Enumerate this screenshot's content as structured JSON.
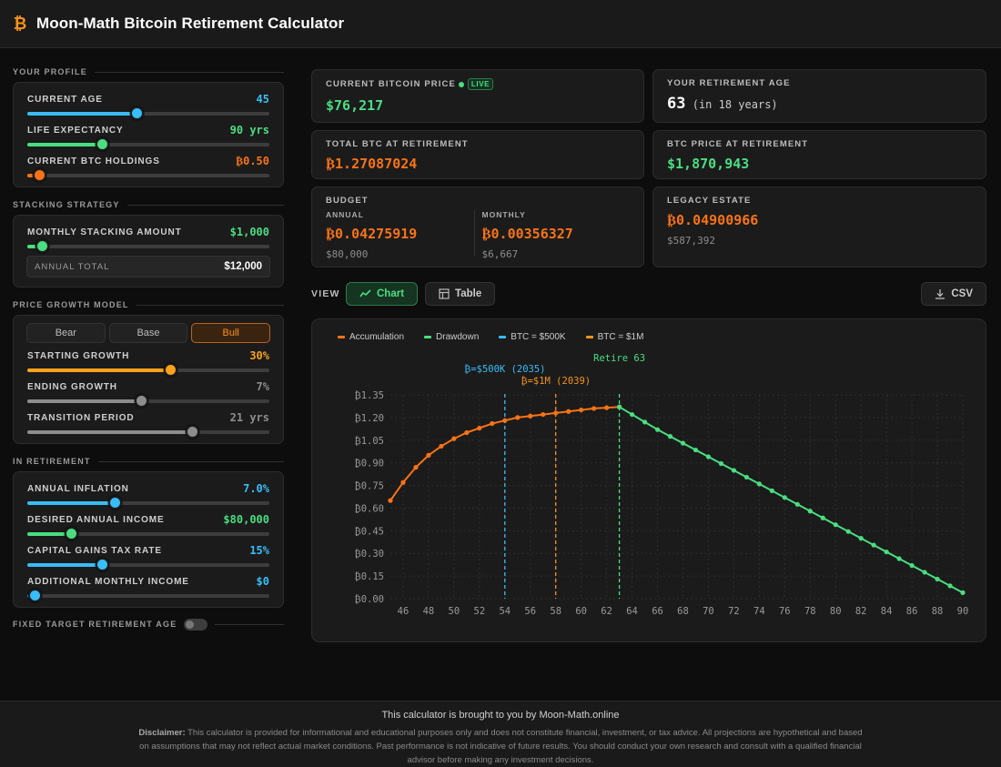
{
  "app": {
    "logo_glyph": "₿",
    "title": "Moon-Math Bitcoin Retirement Calculator"
  },
  "colors": {
    "accent_btc": "#f7931a",
    "green": "#4ade80",
    "orange": "#f97316",
    "blue": "#38bdf8",
    "bg": "#0d0d0d",
    "panel": "#1b1b1b"
  },
  "profile": {
    "section_label": "Your Profile",
    "current_age": {
      "label": "Current Age",
      "value": "45",
      "level": 0.45
    },
    "life_expectancy": {
      "label": "Life Expectancy",
      "value": "90 yrs",
      "level": 0.31
    },
    "btc_holdings": {
      "label": "Current BTC Holdings",
      "value": "₿0.50",
      "level": 0.05
    }
  },
  "stacking": {
    "section_label": "Stacking Strategy",
    "monthly": {
      "label": "Monthly Stacking Amount",
      "value": "$1,000",
      "level": 0.06
    },
    "annual_total_label": "Annual Total",
    "annual_total_value": "$12,000"
  },
  "growth": {
    "section_label": "Price Growth Model",
    "models": [
      "Bear",
      "Base",
      "Bull"
    ],
    "selected_model": "Bull",
    "starting": {
      "label": "Starting Growth",
      "value": "30%",
      "level": 0.59
    },
    "ending": {
      "label": "Ending Growth",
      "value": "7%",
      "level": 0.47
    },
    "transition": {
      "label": "Transition Period",
      "value": "21 yrs",
      "level": 0.68
    }
  },
  "retirement": {
    "section_label": "In Retirement",
    "inflation": {
      "label": "Annual Inflation",
      "value": "7.0%",
      "level": 0.36
    },
    "income": {
      "label": "Desired Annual Income",
      "value": "$80,000",
      "level": 0.18
    },
    "tax": {
      "label": "Capital Gains Tax Rate",
      "value": "15%",
      "level": 0.31
    },
    "additional": {
      "label": "Additional Monthly Income",
      "value": "$0",
      "level": 0.03
    }
  },
  "fixed_target": {
    "label": "Fixed Target Retirement Age",
    "enabled": false
  },
  "cards": {
    "btc_price": {
      "label": "Current Bitcoin Price",
      "value": "$76,217",
      "live": "LIVE"
    },
    "retirement_age": {
      "label": "Your Retirement Age",
      "value": "63",
      "sub": "(in 18 years)"
    },
    "total_btc": {
      "label": "Total BTC at Retirement",
      "value": "₿1.27087024"
    },
    "btc_price_ret": {
      "label": "BTC Price at Retirement",
      "value": "$1,870,943"
    },
    "budget": {
      "label": "Budget",
      "annual_label": "Annual",
      "annual_btc": "₿0.04275919",
      "annual_usd": "$80,000",
      "monthly_label": "Monthly",
      "monthly_btc": "₿0.00356327",
      "monthly_usd": "$6,667"
    },
    "legacy": {
      "label": "Legacy Estate",
      "btc": "₿0.04900966",
      "usd": "$587,392"
    }
  },
  "view": {
    "label": "VIEW",
    "chart_btn": "Chart",
    "table_btn": "Table",
    "csv_btn": "CSV",
    "active": "Chart"
  },
  "chart_data": {
    "type": "line",
    "legend_position": "top-left",
    "series": [
      {
        "name": "Accumulation",
        "color": "#f97316",
        "x": [
          45,
          46,
          47,
          48,
          49,
          50,
          51,
          52,
          53,
          54,
          55,
          56,
          57,
          58,
          59,
          60,
          61,
          62,
          63
        ],
        "y": [
          0.65,
          0.77,
          0.87,
          0.95,
          1.01,
          1.06,
          1.1,
          1.13,
          1.16,
          1.18,
          1.2,
          1.21,
          1.22,
          1.23,
          1.24,
          1.25,
          1.26,
          1.265,
          1.27
        ]
      },
      {
        "name": "Drawdown",
        "color": "#4ade80",
        "x": [
          63,
          64,
          65,
          66,
          67,
          68,
          69,
          70,
          71,
          72,
          73,
          74,
          75,
          76,
          77,
          78,
          79,
          80,
          81,
          82,
          83,
          84,
          85,
          86,
          87,
          88,
          89,
          90
        ],
        "y": [
          1.27,
          1.22,
          1.17,
          1.12,
          1.075,
          1.03,
          0.985,
          0.94,
          0.895,
          0.85,
          0.805,
          0.76,
          0.715,
          0.67,
          0.625,
          0.58,
          0.535,
          0.49,
          0.445,
          0.4,
          0.355,
          0.31,
          0.265,
          0.22,
          0.175,
          0.13,
          0.085,
          0.04
        ]
      }
    ],
    "markers": [
      {
        "name": "BTC = $500K",
        "x": 54,
        "color": "#38bdf8",
        "label": "₿=$500K (2035)"
      },
      {
        "name": "BTC = $1M",
        "x": 58,
        "color": "#f7931a",
        "label": "₿=$1M (2039)"
      },
      {
        "name": "Retire",
        "x": 63,
        "color": "#4ade80",
        "label": "Retire 63"
      }
    ],
    "x_ticks": [
      46,
      48,
      50,
      52,
      54,
      56,
      58,
      60,
      62,
      64,
      66,
      68,
      70,
      72,
      74,
      76,
      78,
      80,
      82,
      84,
      86,
      88,
      90
    ],
    "y_ticks": [
      0,
      0.15,
      0.3,
      0.45,
      0.6,
      0.75,
      0.9,
      1.05,
      1.2,
      1.35
    ],
    "y_tick_labels": [
      "₿0.00",
      "₿0.15",
      "₿0.30",
      "₿0.45",
      "₿0.60",
      "₿0.75",
      "₿0.90",
      "₿1.05",
      "₿1.20",
      "₿1.35"
    ],
    "xlim": [
      45,
      90
    ],
    "ylim": [
      0,
      1.35
    ],
    "grid": true
  },
  "footer": {
    "credit": "This calculator is brought to you by Moon-Math.online",
    "disclaimer_label": "Disclaimer:",
    "disclaimer": " This calculator is provided for informational and educational purposes only and does not constitute financial, investment, or tax advice. All projections are hypothetical and based on assumptions that may not reflect actual market conditions. Past performance is not indicative of future results. You should conduct your own research and consult with a qualified financial advisor before making any investment decisions."
  }
}
